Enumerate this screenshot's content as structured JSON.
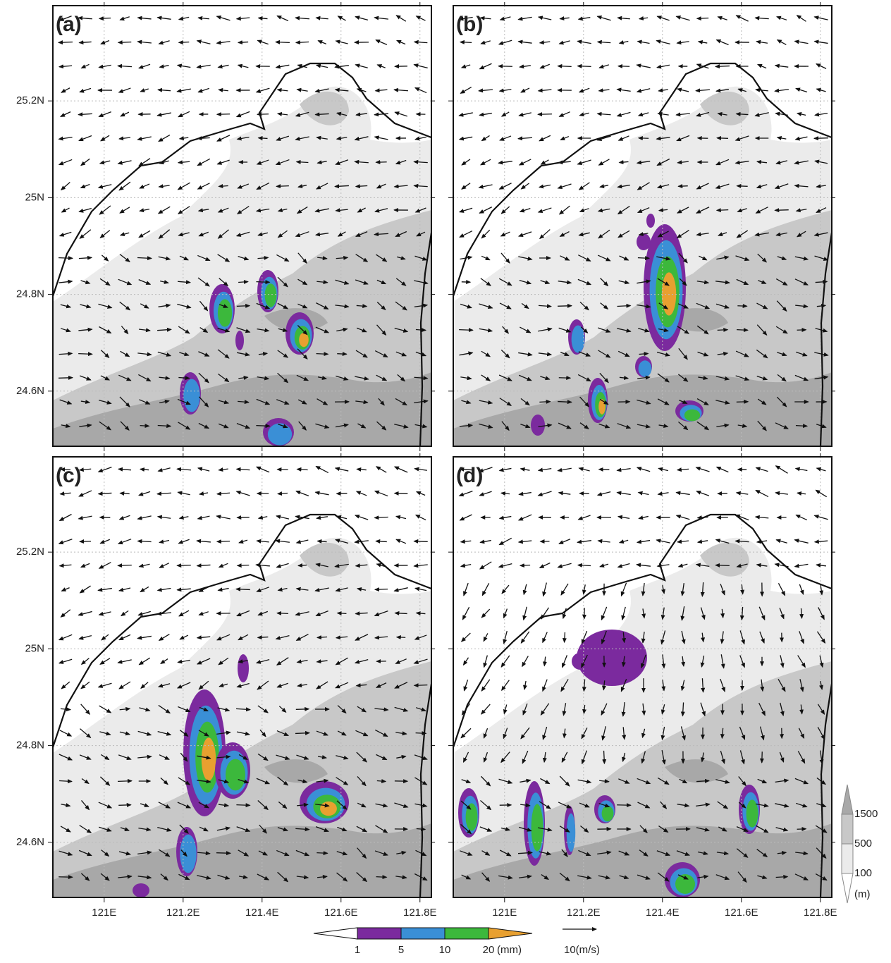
{
  "chart_data": {
    "type": "vector-map",
    "panels": [
      {
        "label": "(a)"
      },
      {
        "label": "(b)"
      },
      {
        "label": "(c)"
      },
      {
        "label": "(d)"
      }
    ],
    "xlim": [
      120.87,
      121.829
    ],
    "ylim": [
      24.486,
      25.397
    ],
    "xticks": [
      {
        "value": 121.0,
        "label": "121E"
      },
      {
        "value": 121.2,
        "label": "121.2E"
      },
      {
        "value": 121.4,
        "label": "121.4E"
      },
      {
        "value": 121.6,
        "label": "121.6E"
      },
      {
        "value": 121.8,
        "label": "121.8E"
      }
    ],
    "yticks": [
      {
        "value": 24.6,
        "label": "24.6N"
      },
      {
        "value": 24.8,
        "label": "24.8N"
      },
      {
        "value": 25.0,
        "label": "25N"
      },
      {
        "value": 25.2,
        "label": "25.2N"
      }
    ],
    "grid": true,
    "colorbar": {
      "ticks": [
        1,
        5,
        10,
        20
      ],
      "unit": "(mm)",
      "colors": [
        "#ffffff",
        "#7b2a9e",
        "#3a8fd6",
        "#3cb83c",
        "#e8a030"
      ]
    },
    "terrain_legend": {
      "ticks": [
        100,
        500,
        1500
      ],
      "unit": "(m)",
      "colors": [
        "#ffffff",
        "#ebebeb",
        "#c8c8c8",
        "#a8a8a8"
      ]
    },
    "reference_vector": {
      "value": 10,
      "label": "10(m/s)"
    }
  }
}
